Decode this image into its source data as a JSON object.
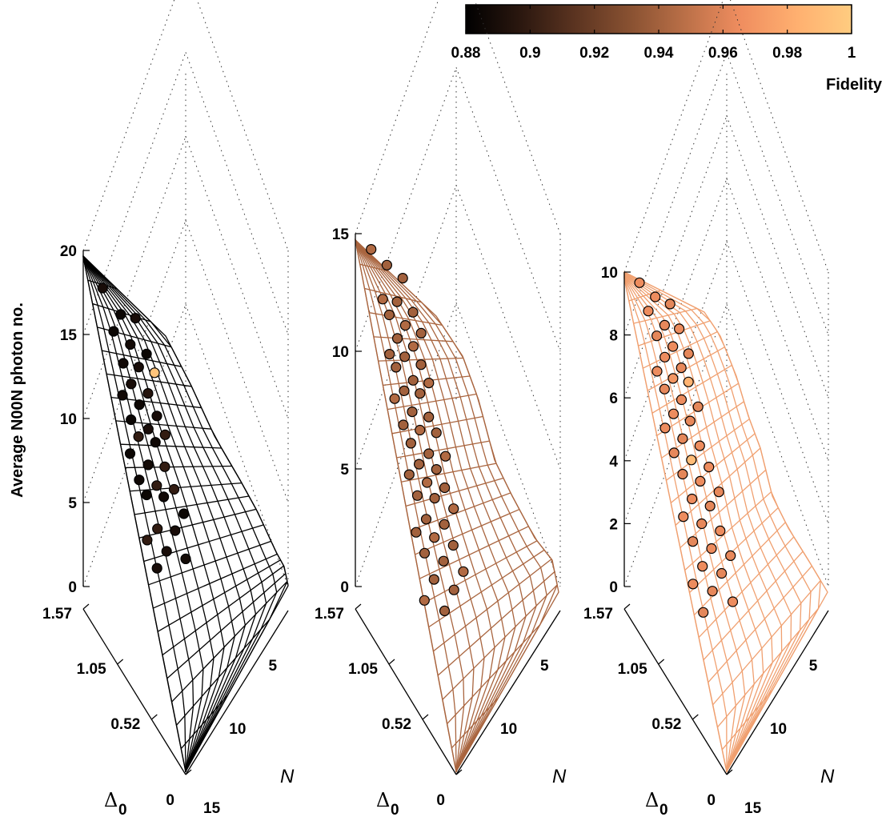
{
  "figure": {
    "ylabel": "Average N00N photon no.",
    "colorbar": {
      "label": "Fidelity",
      "min": 0.88,
      "max": 1,
      "ticks": [
        "0.88",
        "0.9",
        "0.92",
        "0.94",
        "0.96",
        "0.98",
        "1"
      ],
      "colormap": [
        "#000000",
        "#2a170f",
        "#5a3320",
        "#8a5232",
        "#bb7048",
        "#ef8d5f",
        "#ffb070",
        "#ffcc80"
      ]
    },
    "n_axis_label": "N",
    "delta_axis_label": "Δ",
    "delta_axis_subscript": "0"
  },
  "chart_data": [
    {
      "type": "scatter3d",
      "title": "",
      "zlabel": "Average N00N photon no.",
      "z_ticks": [
        "0",
        "5",
        "10",
        "15",
        "20"
      ],
      "zlim": [
        0,
        20
      ],
      "delta_ticks": [
        "0",
        "0.52",
        "1.05",
        "1.57"
      ],
      "n_ticks": [
        "5",
        "10",
        "15"
      ],
      "surface_color": "#000000",
      "points": [
        {
          "z": 18.0,
          "f": 0.89
        },
        {
          "z": 16.6,
          "f": 0.885
        },
        {
          "z": 16.4,
          "f": 0.89
        },
        {
          "z": 15.7,
          "f": 0.885
        },
        {
          "z": 15.0,
          "f": 0.888
        },
        {
          "z": 14.5,
          "f": 0.885
        },
        {
          "z": 14.0,
          "f": 0.887
        },
        {
          "z": 13.8,
          "f": 0.89
        },
        {
          "z": 13.5,
          "f": 0.995
        },
        {
          "z": 12.9,
          "f": 0.89
        },
        {
          "z": 12.4,
          "f": 0.895
        },
        {
          "z": 12.3,
          "f": 0.887
        },
        {
          "z": 11.8,
          "f": 0.886
        },
        {
          "z": 11.2,
          "f": 0.89
        },
        {
          "z": 11.0,
          "f": 0.885
        },
        {
          "z": 10.5,
          "f": 0.89
        },
        {
          "z": 10.2,
          "f": 0.9
        },
        {
          "z": 10.1,
          "f": 0.9
        },
        {
          "z": 9.8,
          "f": 0.886
        },
        {
          "z": 9.2,
          "f": 0.885
        },
        {
          "z": 8.6,
          "f": 0.888
        },
        {
          "z": 8.5,
          "f": 0.9
        },
        {
          "z": 7.8,
          "f": 0.886
        },
        {
          "z": 7.5,
          "f": 0.9
        },
        {
          "z": 7.3,
          "f": 0.9
        },
        {
          "z": 7.0,
          "f": 0.885
        },
        {
          "z": 6.9,
          "f": 0.887
        },
        {
          "z": 6.0,
          "f": 0.885
        },
        {
          "z": 5.2,
          "f": 0.9
        },
        {
          "z": 5.1,
          "f": 0.89
        },
        {
          "z": 4.6,
          "f": 0.9
        },
        {
          "z": 4.0,
          "f": 0.89
        },
        {
          "z": 3.6,
          "f": 0.888
        },
        {
          "z": 3.1,
          "f": 0.89
        }
      ]
    },
    {
      "type": "scatter3d",
      "title": "",
      "zlabel": "",
      "z_ticks": [
        "0",
        "5",
        "10",
        "15"
      ],
      "zlim": [
        0,
        15
      ],
      "delta_ticks": [
        "0",
        "0.52",
        "1.05",
        "1.57"
      ],
      "n_ticks": [
        "5",
        "10"
      ],
      "surface_color": "#a9653f",
      "points": [
        {
          "z": 14.4,
          "f": 0.945
        },
        {
          "z": 13.8,
          "f": 0.94
        },
        {
          "z": 13.3,
          "f": 0.94
        },
        {
          "z": 12.5,
          "f": 0.945
        },
        {
          "z": 12.4,
          "f": 0.94
        },
        {
          "z": 12.0,
          "f": 0.94
        },
        {
          "z": 11.9,
          "f": 0.94
        },
        {
          "z": 11.5,
          "f": 0.945
        },
        {
          "z": 11.2,
          "f": 0.94
        },
        {
          "z": 11.0,
          "f": 0.94
        },
        {
          "z": 10.7,
          "f": 0.945
        },
        {
          "z": 10.4,
          "f": 0.94
        },
        {
          "z": 10.3,
          "f": 0.94
        },
        {
          "z": 10.0,
          "f": 0.94
        },
        {
          "z": 9.9,
          "f": 0.94
        },
        {
          "z": 9.4,
          "f": 0.94
        },
        {
          "z": 9.3,
          "f": 0.945
        },
        {
          "z": 9.0,
          "f": 0.94
        },
        {
          "z": 8.9,
          "f": 0.94
        },
        {
          "z": 8.7,
          "f": 0.945
        },
        {
          "z": 8.2,
          "f": 0.94
        },
        {
          "z": 8.0,
          "f": 0.94
        },
        {
          "z": 7.7,
          "f": 0.94
        },
        {
          "z": 7.5,
          "f": 0.945
        },
        {
          "z": 7.4,
          "f": 0.94
        },
        {
          "z": 7.0,
          "f": 0.94
        },
        {
          "z": 6.6,
          "f": 0.94
        },
        {
          "z": 6.5,
          "f": 0.945
        },
        {
          "z": 6.2,
          "f": 0.94
        },
        {
          "z": 6.0,
          "f": 0.94
        },
        {
          "z": 5.8,
          "f": 0.94
        },
        {
          "z": 5.5,
          "f": 0.945
        },
        {
          "z": 5.3,
          "f": 0.94
        },
        {
          "z": 5.0,
          "f": 0.94
        },
        {
          "z": 4.9,
          "f": 0.94
        },
        {
          "z": 4.5,
          "f": 0.945
        },
        {
          "z": 4.1,
          "f": 0.94
        },
        {
          "z": 3.9,
          "f": 0.94
        },
        {
          "z": 3.6,
          "f": 0.94
        },
        {
          "z": 3.4,
          "f": 0.945
        },
        {
          "z": 3.1,
          "f": 0.94
        },
        {
          "z": 2.8,
          "f": 0.94
        },
        {
          "z": 2.5,
          "f": 0.94
        },
        {
          "z": 2.1,
          "f": 0.945
        },
        {
          "z": 1.8,
          "f": 0.94
        },
        {
          "z": 1.4,
          "f": 0.94
        },
        {
          "z": 1.0,
          "f": 0.945
        },
        {
          "z": 0.6,
          "f": 0.94
        }
      ]
    },
    {
      "type": "scatter3d",
      "title": "",
      "zlabel": "",
      "z_ticks": [
        "0",
        "2",
        "4",
        "6",
        "8",
        "10"
      ],
      "zlim": [
        0,
        10
      ],
      "delta_ticks": [
        "0",
        "0.52",
        "1.05",
        "1.57"
      ],
      "n_ticks": [
        "5",
        "10",
        "15"
      ],
      "surface_color": "#f0a070",
      "points": [
        {
          "z": 9.7,
          "f": 0.965
        },
        {
          "z": 9.3,
          "f": 0.965
        },
        {
          "z": 9.1,
          "f": 0.962
        },
        {
          "z": 8.9,
          "f": 0.965
        },
        {
          "z": 8.5,
          "f": 0.963
        },
        {
          "z": 8.4,
          "f": 0.965
        },
        {
          "z": 8.2,
          "f": 0.962
        },
        {
          "z": 7.9,
          "f": 0.965
        },
        {
          "z": 7.7,
          "f": 0.962
        },
        {
          "z": 7.6,
          "f": 0.965
        },
        {
          "z": 7.3,
          "f": 0.963
        },
        {
          "z": 7.2,
          "f": 0.965
        },
        {
          "z": 7.0,
          "f": 0.97
        },
        {
          "z": 6.9,
          "f": 0.985
        },
        {
          "z": 6.7,
          "f": 0.963
        },
        {
          "z": 6.4,
          "f": 0.965
        },
        {
          "z": 6.2,
          "f": 0.962
        },
        {
          "z": 6.0,
          "f": 0.965
        },
        {
          "z": 5.8,
          "f": 0.963
        },
        {
          "z": 5.6,
          "f": 0.965
        },
        {
          "z": 5.3,
          "f": 0.962
        },
        {
          "z": 5.1,
          "f": 0.965
        },
        {
          "z": 4.9,
          "f": 0.963
        },
        {
          "z": 4.7,
          "f": 0.99
        },
        {
          "z": 4.5,
          "f": 0.965
        },
        {
          "z": 4.3,
          "f": 0.962
        },
        {
          "z": 4.1,
          "f": 0.965
        },
        {
          "z": 3.8,
          "f": 0.963
        },
        {
          "z": 3.6,
          "f": 0.965
        },
        {
          "z": 3.4,
          "f": 0.962
        },
        {
          "z": 3.1,
          "f": 0.965
        },
        {
          "z": 2.9,
          "f": 0.963
        },
        {
          "z": 2.7,
          "f": 0.965
        },
        {
          "z": 2.4,
          "f": 0.962
        },
        {
          "z": 2.2,
          "f": 0.965
        },
        {
          "z": 2.0,
          "f": 0.963
        },
        {
          "z": 1.7,
          "f": 0.965
        },
        {
          "z": 1.5,
          "f": 0.962
        },
        {
          "z": 1.2,
          "f": 0.965
        },
        {
          "z": 1.0,
          "f": 0.963
        },
        {
          "z": 0.7,
          "f": 0.965
        },
        {
          "z": 0.4,
          "f": 0.962
        }
      ]
    }
  ]
}
